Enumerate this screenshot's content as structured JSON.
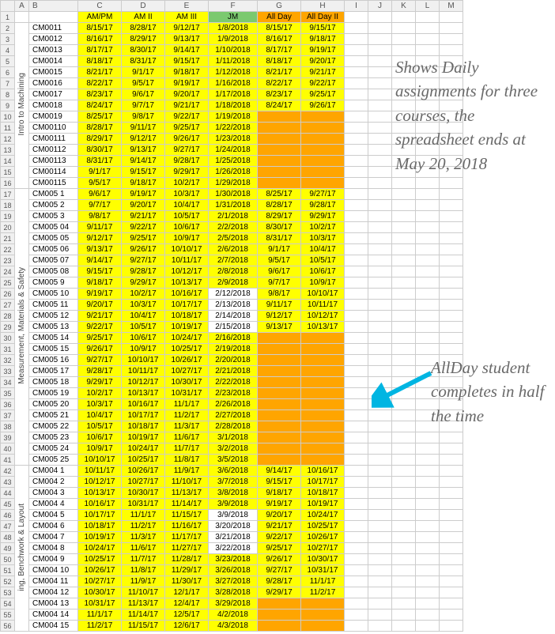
{
  "columns": [
    "",
    "A",
    "B",
    "C",
    "D",
    "E",
    "F",
    "G",
    "H",
    "I",
    "J",
    "K",
    "L",
    "M"
  ],
  "headers": {
    "C": "AM/PM",
    "D": "AM II",
    "E": "AM III",
    "F": "JM",
    "G": "All Day",
    "H": "All Day II"
  },
  "header_bg": {
    "C": "yellow",
    "D": "yellow",
    "E": "yellow",
    "F": "green",
    "G": "orange",
    "H": "orange"
  },
  "section_labels": {
    "intro": "Intro to Machining",
    "meas": "Measurement, Materials & Safety",
    "bench": "ing, Benchwork & Layout"
  },
  "notes": {
    "n1": "Shows Daily assignments for three courses, the spreadsheet ends at May 20, 2018",
    "n2": "AllDay student completes in half the time"
  },
  "arrow_color": "#00b5e2",
  "rows": [
    {
      "r": 2,
      "b": "CM0011",
      "c": "8/15/17",
      "d": "8/28/17",
      "e": "9/12/17",
      "f": "1/8/2018",
      "g": "8/15/17",
      "h": "9/15/17"
    },
    {
      "r": 3,
      "b": "CM0012",
      "c": "8/16/17",
      "d": "8/29/17",
      "e": "9/13/17",
      "f": "1/9/2018",
      "g": "8/16/17",
      "h": "9/18/17"
    },
    {
      "r": 4,
      "b": "CM0013",
      "c": "8/17/17",
      "d": "8/30/17",
      "e": "9/14/17",
      "f": "1/10/2018",
      "g": "8/17/17",
      "h": "9/19/17"
    },
    {
      "r": 5,
      "b": "CM0014",
      "c": "8/18/17",
      "d": "8/31/17",
      "e": "9/15/17",
      "f": "1/11/2018",
      "g": "8/18/17",
      "h": "9/20/17"
    },
    {
      "r": 6,
      "b": "CM0015",
      "c": "8/21/17",
      "d": "9/1/17",
      "e": "9/18/17",
      "f": "1/12/2018",
      "g": "8/21/17",
      "h": "9/21/17"
    },
    {
      "r": 7,
      "b": "CM0016",
      "c": "8/22/17",
      "d": "9/5/17",
      "e": "9/19/17",
      "f": "1/16/2018",
      "g": "8/22/17",
      "h": "9/22/17"
    },
    {
      "r": 8,
      "b": "CM0017",
      "c": "8/23/17",
      "d": "9/6/17",
      "e": "9/20/17",
      "f": "1/17/2018",
      "g": "8/23/17",
      "h": "9/25/17"
    },
    {
      "r": 9,
      "b": "CM0018",
      "c": "8/24/17",
      "d": "9/7/17",
      "e": "9/21/17",
      "f": "1/18/2018",
      "g": "8/24/17",
      "h": "9/26/17"
    },
    {
      "r": 10,
      "b": "CM0019",
      "c": "8/25/17",
      "d": "9/8/17",
      "e": "9/22/17",
      "f": "1/19/2018",
      "g": "",
      "h": "",
      "go": "orange",
      "ho": "orange"
    },
    {
      "r": 11,
      "b": "CM00110",
      "c": "8/28/17",
      "d": "9/11/17",
      "e": "9/25/17",
      "f": "1/22/2018",
      "g": "",
      "h": "",
      "go": "orange",
      "ho": "orange"
    },
    {
      "r": 12,
      "b": "CM00111",
      "c": "8/29/17",
      "d": "9/12/17",
      "e": "9/26/17",
      "f": "1/23/2018",
      "g": "",
      "h": "",
      "go": "orange",
      "ho": "orange"
    },
    {
      "r": 13,
      "b": "CM00112",
      "c": "8/30/17",
      "d": "9/13/17",
      "e": "9/27/17",
      "f": "1/24/2018",
      "g": "",
      "h": "",
      "go": "orange",
      "ho": "orange"
    },
    {
      "r": 14,
      "b": "CM00113",
      "c": "8/31/17",
      "d": "9/14/17",
      "e": "9/28/17",
      "f": "1/25/2018",
      "g": "",
      "h": "",
      "go": "orange",
      "ho": "orange"
    },
    {
      "r": 15,
      "b": "CM00114",
      "c": "9/1/17",
      "d": "9/15/17",
      "e": "9/29/17",
      "f": "1/26/2018",
      "g": "",
      "h": "",
      "go": "orange",
      "ho": "orange"
    },
    {
      "r": 16,
      "b": "CM00115",
      "c": "9/5/17",
      "d": "9/18/17",
      "e": "10/2/17",
      "f": "1/29/2018",
      "g": "",
      "h": "",
      "go": "orange",
      "ho": "orange"
    },
    {
      "r": 17,
      "b": "CM005 1",
      "c": "9/6/17",
      "d": "9/19/17",
      "e": "10/3/17",
      "f": "1/30/2018",
      "g": "8/25/17",
      "h": "9/27/17"
    },
    {
      "r": 18,
      "b": "CM005 2",
      "c": "9/7/17",
      "d": "9/20/17",
      "e": "10/4/17",
      "f": "1/31/2018",
      "g": "8/28/17",
      "h": "9/28/17"
    },
    {
      "r": 19,
      "b": "CM005 3",
      "c": "9/8/17",
      "d": "9/21/17",
      "e": "10/5/17",
      "f": "2/1/2018",
      "g": "8/29/17",
      "h": "9/29/17"
    },
    {
      "r": 20,
      "b": "CM005 04",
      "c": "9/11/17",
      "d": "9/22/17",
      "e": "10/6/17",
      "f": "2/2/2018",
      "g": "8/30/17",
      "h": "10/2/17"
    },
    {
      "r": 21,
      "b": "CM005 05",
      "c": "9/12/17",
      "d": "9/25/17",
      "e": "10/9/17",
      "f": "2/5/2018",
      "g": "8/31/17",
      "h": "10/3/17"
    },
    {
      "r": 22,
      "b": "CM005 06",
      "c": "9/13/17",
      "d": "9/26/17",
      "e": "10/10/17",
      "f": "2/6/2018",
      "g": "9/1/17",
      "h": "10/4/17"
    },
    {
      "r": 23,
      "b": "CM005 07",
      "c": "9/14/17",
      "d": "9/27/17",
      "e": "10/11/17",
      "f": "2/7/2018",
      "g": "9/5/17",
      "h": "10/5/17"
    },
    {
      "r": 24,
      "b": "CM005 08",
      "c": "9/15/17",
      "d": "9/28/17",
      "e": "10/12/17",
      "f": "2/8/2018",
      "g": "9/6/17",
      "h": "10/6/17"
    },
    {
      "r": 25,
      "b": "CM005 9",
      "c": "9/18/17",
      "d": "9/29/17",
      "e": "10/13/17",
      "f": "2/9/2018",
      "g": "9/7/17",
      "h": "10/9/17"
    },
    {
      "r": 26,
      "b": "CM005 10",
      "c": "9/19/17",
      "d": "10/2/17",
      "e": "10/16/17",
      "f": "2/12/2018",
      "g": "9/8/17",
      "h": "10/10/17",
      "fno": true
    },
    {
      "r": 27,
      "b": "CM005 11",
      "c": "9/20/17",
      "d": "10/3/17",
      "e": "10/17/17",
      "f": "2/13/2018",
      "g": "9/11/17",
      "h": "10/11/17",
      "fno": true
    },
    {
      "r": 28,
      "b": "CM005 12",
      "c": "9/21/17",
      "d": "10/4/17",
      "e": "10/18/17",
      "f": "2/14/2018",
      "g": "9/12/17",
      "h": "10/12/17",
      "fno": true
    },
    {
      "r": 29,
      "b": "CM005 13",
      "c": "9/22/17",
      "d": "10/5/17",
      "e": "10/19/17",
      "f": "2/15/2018",
      "g": "9/13/17",
      "h": "10/13/17",
      "fno": true
    },
    {
      "r": 30,
      "b": "CM005 14",
      "c": "9/25/17",
      "d": "10/6/17",
      "e": "10/24/17",
      "f": "2/16/2018",
      "g": "",
      "h": "",
      "go": "orange",
      "ho": "orange"
    },
    {
      "r": 31,
      "b": "CM005 15",
      "c": "9/26/17",
      "d": "10/9/17",
      "e": "10/25/17",
      "f": "2/19/2018",
      "g": "",
      "h": "",
      "go": "orange",
      "ho": "orange"
    },
    {
      "r": 32,
      "b": "CM005 16",
      "c": "9/27/17",
      "d": "10/10/17",
      "e": "10/26/17",
      "f": "2/20/2018",
      "g": "",
      "h": "",
      "go": "orange",
      "ho": "orange"
    },
    {
      "r": 33,
      "b": "CM005 17",
      "c": "9/28/17",
      "d": "10/11/17",
      "e": "10/27/17",
      "f": "2/21/2018",
      "g": "",
      "h": "",
      "go": "orange",
      "ho": "orange"
    },
    {
      "r": 34,
      "b": "CM005 18",
      "c": "9/29/17",
      "d": "10/12/17",
      "e": "10/30/17",
      "f": "2/22/2018",
      "g": "",
      "h": "",
      "go": "orange",
      "ho": "orange"
    },
    {
      "r": 35,
      "b": "CM005 19",
      "c": "10/2/17",
      "d": "10/13/17",
      "e": "10/31/17",
      "f": "2/23/2018",
      "g": "",
      "h": "",
      "go": "orange",
      "ho": "orange"
    },
    {
      "r": 36,
      "b": "CM005 20",
      "c": "10/3/17",
      "d": "10/16/17",
      "e": "11/1/17",
      "f": "2/26/2018",
      "g": "",
      "h": "",
      "go": "orange",
      "ho": "orange"
    },
    {
      "r": 37,
      "b": "CM005 21",
      "c": "10/4/17",
      "d": "10/17/17",
      "e": "11/2/17",
      "f": "2/27/2018",
      "g": "",
      "h": "",
      "go": "orange",
      "ho": "orange"
    },
    {
      "r": 38,
      "b": "CM005 22",
      "c": "10/5/17",
      "d": "10/18/17",
      "e": "11/3/17",
      "f": "2/28/2018",
      "g": "",
      "h": "",
      "go": "orange",
      "ho": "orange"
    },
    {
      "r": 39,
      "b": "CM005 23",
      "c": "10/6/17",
      "d": "10/19/17",
      "e": "11/6/17",
      "f": "3/1/2018",
      "g": "",
      "h": "",
      "go": "orange",
      "ho": "orange"
    },
    {
      "r": 40,
      "b": "CM005 24",
      "c": "10/9/17",
      "d": "10/24/17",
      "e": "11/7/17",
      "f": "3/2/2018",
      "g": "",
      "h": "",
      "go": "orange",
      "ho": "orange"
    },
    {
      "r": 41,
      "b": "CM005 25",
      "c": "10/10/17",
      "d": "10/25/17",
      "e": "11/8/17",
      "f": "3/5/2018",
      "g": "",
      "h": "",
      "go": "orange",
      "ho": "orange"
    },
    {
      "r": 42,
      "b": "CM004 1",
      "c": "10/11/17",
      "d": "10/26/17",
      "e": "11/9/17",
      "f": "3/6/2018",
      "g": "9/14/17",
      "h": "10/16/17"
    },
    {
      "r": 43,
      "b": "CM004 2",
      "c": "10/12/17",
      "d": "10/27/17",
      "e": "11/10/17",
      "f": "3/7/2018",
      "g": "9/15/17",
      "h": "10/17/17"
    },
    {
      "r": 44,
      "b": "CM004 3",
      "c": "10/13/17",
      "d": "10/30/17",
      "e": "11/13/17",
      "f": "3/8/2018",
      "g": "9/18/17",
      "h": "10/18/17"
    },
    {
      "r": 45,
      "b": "CM004 4",
      "c": "10/16/17",
      "d": "10/31/17",
      "e": "11/14/17",
      "f": "3/9/2018",
      "g": "9/19/17",
      "h": "10/19/17"
    },
    {
      "r": 46,
      "b": "CM004 5",
      "c": "10/17/17",
      "d": "11/1/17",
      "e": "11/15/17",
      "f": "3/9/2018",
      "g": "9/20/17",
      "h": "10/24/17",
      "fno": true
    },
    {
      "r": 47,
      "b": "CM004 6",
      "c": "10/18/17",
      "d": "11/2/17",
      "e": "11/16/17",
      "f": "3/20/2018",
      "g": "9/21/17",
      "h": "10/25/17",
      "fno": true
    },
    {
      "r": 48,
      "b": "CM004 7",
      "c": "10/19/17",
      "d": "11/3/17",
      "e": "11/17/17",
      "f": "3/21/2018",
      "g": "9/22/17",
      "h": "10/26/17",
      "fno": true
    },
    {
      "r": 49,
      "b": "CM004 8",
      "c": "10/24/17",
      "d": "11/6/17",
      "e": "11/27/17",
      "f": "3/22/2018",
      "g": "9/25/17",
      "h": "10/27/17",
      "fno": true
    },
    {
      "r": 50,
      "b": "CM004 9",
      "c": "10/25/17",
      "d": "11/7/17",
      "e": "11/28/17",
      "f": "3/23/2018",
      "g": "9/26/17",
      "h": "10/30/17"
    },
    {
      "r": 51,
      "b": "CM004 10",
      "c": "10/26/17",
      "d": "11/8/17",
      "e": "11/29/17",
      "f": "3/26/2018",
      "g": "9/27/17",
      "h": "10/31/17"
    },
    {
      "r": 52,
      "b": "CM004 11",
      "c": "10/27/17",
      "d": "11/9/17",
      "e": "11/30/17",
      "f": "3/27/2018",
      "g": "9/28/17",
      "h": "11/1/17"
    },
    {
      "r": 53,
      "b": "CM004 12",
      "c": "10/30/17",
      "d": "11/10/17",
      "e": "12/1/17",
      "f": "3/28/2018",
      "g": "9/29/17",
      "h": "11/2/17"
    },
    {
      "r": 54,
      "b": "CM004 13",
      "c": "10/31/17",
      "d": "11/13/17",
      "e": "12/4/17",
      "f": "3/29/2018",
      "g": "",
      "h": "",
      "go": "orange",
      "ho": "orange"
    },
    {
      "r": 55,
      "b": "CM004 14",
      "c": "11/1/17",
      "d": "11/14/17",
      "e": "12/5/17",
      "f": "4/2/2018",
      "g": "",
      "h": "",
      "go": "orange",
      "ho": "orange"
    },
    {
      "r": 56,
      "b": "CM004 15",
      "c": "11/2/17",
      "d": "11/15/17",
      "e": "12/6/17",
      "f": "4/3/2018",
      "g": "",
      "h": "",
      "go": "orange",
      "ho": "orange"
    }
  ]
}
